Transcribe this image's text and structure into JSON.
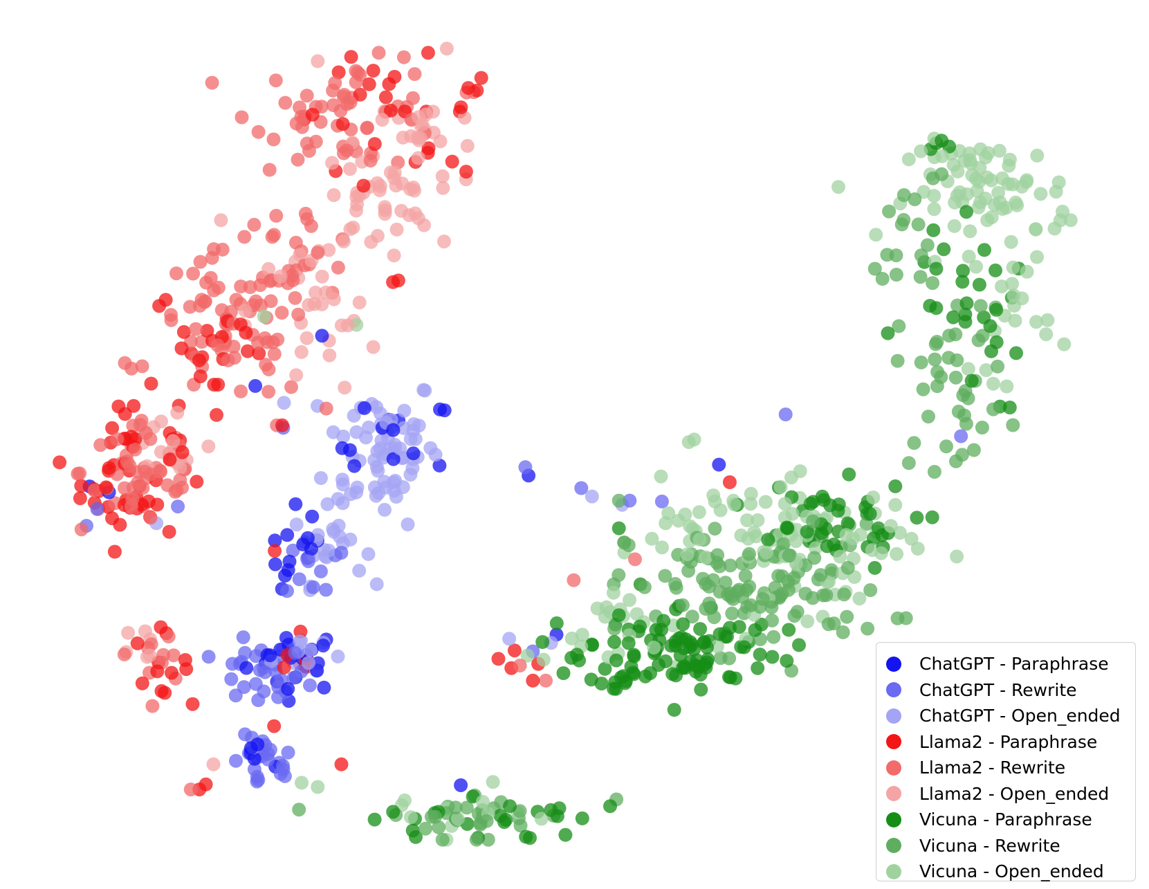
{
  "chart_data": {
    "type": "scatter",
    "title": "",
    "xlabel": "",
    "ylabel": "",
    "grid": false,
    "axes_visible": false,
    "legend_position": "bottom-right",
    "xlim": [
      0,
      100
    ],
    "ylim": [
      0,
      100
    ],
    "point_alpha": 0.75,
    "series": [
      {
        "name": "ChatGPT - Paraphrase",
        "color": "#1414f0",
        "clusters": [
          {
            "cx": 24.0,
            "cy": 24.5,
            "sx": 3.0,
            "sy": 2.5,
            "n": 22
          },
          {
            "cx": 24.5,
            "cy": 37.0,
            "sx": 2.0,
            "sy": 4.0,
            "n": 14
          },
          {
            "cx": 33.5,
            "cy": 50.0,
            "sx": 3.5,
            "sy": 4.0,
            "n": 12
          },
          {
            "cx": 21.0,
            "cy": 14.0,
            "sx": 2.0,
            "sy": 1.5,
            "n": 5
          }
        ],
        "points": [
          [
            4.8,
            45.2
          ],
          [
            6.6,
            44.5
          ],
          [
            20.2,
            57.2
          ],
          [
            32.0,
            52.2
          ],
          [
            45.6,
            46.5
          ],
          [
            63.3,
            47.8
          ],
          [
            48.2,
            27.5
          ],
          [
            26.4,
            63.2
          ],
          [
            39.3,
            9.5
          ]
        ]
      },
      {
        "name": "ChatGPT - Rewrite",
        "color": "#6a6af2",
        "clusters": [
          {
            "cx": 20.5,
            "cy": 22.5,
            "sx": 3.0,
            "sy": 2.5,
            "n": 28
          },
          {
            "cx": 21.0,
            "cy": 12.0,
            "sx": 2.0,
            "sy": 2.2,
            "n": 22
          },
          {
            "cx": 26.0,
            "cy": 35.5,
            "sx": 2.0,
            "sy": 2.5,
            "n": 10
          }
        ],
        "points": [
          [
            5.5,
            42.5
          ],
          [
            13.0,
            42.8
          ],
          [
            4.5,
            40.5
          ],
          [
            22.8,
            52.2
          ],
          [
            50.5,
            45.0
          ],
          [
            55.0,
            43.5
          ],
          [
            58.0,
            43.4
          ],
          [
            45.3,
            47.5
          ],
          [
            69.5,
            53.8
          ],
          [
            46.0,
            25.5
          ],
          [
            85.8,
            51.2
          ]
        ]
      },
      {
        "name": "ChatGPT - Open_ended",
        "color": "#a4a4f4",
        "clusters": [
          {
            "cx": 32.0,
            "cy": 50.0,
            "sx": 3.5,
            "sy": 6.0,
            "n": 70
          },
          {
            "cx": 27.0,
            "cy": 38.0,
            "sx": 2.2,
            "sy": 3.0,
            "n": 22
          },
          {
            "cx": 24.5,
            "cy": 25.5,
            "sx": 2.5,
            "sy": 2.0,
            "n": 12
          }
        ],
        "points": [
          [
            51.5,
            44.0
          ],
          [
            54.3,
            43.0
          ],
          [
            47.7,
            26.5
          ],
          [
            11.0,
            40.8
          ],
          [
            20.0,
            14.0
          ],
          [
            43.8,
            27.0
          ]
        ]
      },
      {
        "name": "Llama2 - Paraphrase",
        "color": "#f31616",
        "clusters": [
          {
            "cx": 8.5,
            "cy": 47.0,
            "sx": 3.0,
            "sy": 6.0,
            "n": 45
          },
          {
            "cx": 16.5,
            "cy": 62.0,
            "sx": 4.0,
            "sy": 5.0,
            "n": 22
          },
          {
            "cx": 32.0,
            "cy": 90.0,
            "sx": 6.0,
            "sy": 4.5,
            "n": 22
          },
          {
            "cx": 11.0,
            "cy": 24.0,
            "sx": 2.0,
            "sy": 2.5,
            "n": 12
          },
          {
            "cx": 24.0,
            "cy": 22.0,
            "sx": 2.0,
            "sy": 4.0,
            "n": 8
          }
        ],
        "points": [
          [
            15.0,
            9.0
          ],
          [
            15.6,
            9.6
          ],
          [
            44.0,
            23.5
          ],
          [
            42.8,
            24.6
          ],
          [
            46.0,
            22.0
          ],
          [
            46.5,
            24.0
          ],
          [
            44.3,
            25.6
          ],
          [
            28.2,
            12.0
          ],
          [
            22.0,
            37.5
          ],
          [
            22.7,
            52.5
          ],
          [
            33.0,
            69.6
          ],
          [
            40.8,
            92.5
          ],
          [
            40.0,
            92.8
          ],
          [
            38.5,
            84.0
          ],
          [
            36.3,
            85.6
          ],
          [
            39.8,
            82.8
          ],
          [
            64.3,
            45.7
          ],
          [
            33.5,
            69.8
          ],
          [
            41.2,
            94.0
          ]
        ]
      },
      {
        "name": "Llama2 - Rewrite",
        "color": "#f26a6a",
        "clusters": [
          {
            "cx": 10.0,
            "cy": 47.0,
            "sx": 4.0,
            "sy": 5.0,
            "n": 50
          },
          {
            "cx": 18.0,
            "cy": 64.0,
            "sx": 5.0,
            "sy": 6.0,
            "n": 70
          },
          {
            "cx": 29.0,
            "cy": 90.0,
            "sx": 6.0,
            "sy": 4.5,
            "n": 55
          },
          {
            "cx": 24.0,
            "cy": 73.0,
            "sx": 4.0,
            "sy": 4.0,
            "n": 20
          },
          {
            "cx": 11.5,
            "cy": 25.0,
            "sx": 2.0,
            "sy": 2.0,
            "n": 10
          }
        ],
        "points": [
          [
            22.2,
            52.5
          ],
          [
            26.8,
            54.5
          ],
          [
            14.2,
            9.0
          ],
          [
            44.8,
            23.8
          ],
          [
            47.2,
            22.0
          ],
          [
            55.5,
            36.5
          ],
          [
            49.8,
            34.0
          ],
          [
            40.5,
            92.3
          ]
        ]
      },
      {
        "name": "Llama2 - Open_ended",
        "color": "#f4a4a4",
        "clusters": [
          {
            "cx": 31.5,
            "cy": 79.5,
            "sx": 3.5,
            "sy": 4.0,
            "n": 40
          },
          {
            "cx": 25.5,
            "cy": 66.0,
            "sx": 4.0,
            "sy": 6.0,
            "n": 28
          },
          {
            "cx": 36.0,
            "cy": 87.0,
            "sx": 3.0,
            "sy": 3.5,
            "n": 20
          },
          {
            "cx": 12.0,
            "cy": 50.0,
            "sx": 3.0,
            "sy": 4.0,
            "n": 15
          },
          {
            "cx": 10.5,
            "cy": 26.5,
            "sx": 1.8,
            "sy": 1.5,
            "n": 6
          }
        ],
        "points": [
          [
            27.5,
            80.0
          ],
          [
            26.0,
            96.0
          ],
          [
            17.0,
            77.0
          ],
          [
            38.0,
            97.5
          ],
          [
            32.0,
            89.0
          ],
          [
            16.3,
            12.0
          ],
          [
            28.5,
            57.0
          ],
          [
            24.0,
            58.5
          ]
        ]
      },
      {
        "name": "Vicuna - Paraphrase",
        "color": "#168e16",
        "clusters": [
          {
            "cx": 60.0,
            "cy": 26.0,
            "sx": 6.0,
            "sy": 3.5,
            "n": 90
          },
          {
            "cx": 72.5,
            "cy": 40.5,
            "sx": 6.0,
            "sy": 3.5,
            "n": 40
          },
          {
            "cx": 87.0,
            "cy": 65.0,
            "sx": 3.0,
            "sy": 7.5,
            "n": 22
          },
          {
            "cx": 41.5,
            "cy": 5.5,
            "sx": 7.0,
            "sy": 2.0,
            "n": 24
          },
          {
            "cx": 52.5,
            "cy": 24.0,
            "sx": 2.0,
            "sy": 2.5,
            "n": 10
          }
        ],
        "points": [
          [
            83.5,
            86.2
          ],
          [
            84.0,
            86.5
          ],
          [
            84.7,
            85.8
          ],
          [
            83.0,
            85.5
          ],
          [
            86.3,
            78.0
          ],
          [
            83.5,
            71.2
          ],
          [
            82.4,
            72.0
          ],
          [
            89.0,
            71.0
          ],
          [
            79.0,
            63.5
          ],
          [
            83.5,
            66.5
          ],
          [
            56.0,
            33.5
          ],
          [
            65.0,
            43.0
          ],
          [
            54.0,
            40.2
          ]
        ]
      },
      {
        "name": "Vicuna - Rewrite",
        "color": "#5fad5f",
        "clusters": [
          {
            "cx": 67.0,
            "cy": 33.0,
            "sx": 8.0,
            "sy": 5.0,
            "n": 110
          },
          {
            "cx": 85.0,
            "cy": 58.0,
            "sx": 3.5,
            "sy": 7.0,
            "n": 40
          },
          {
            "cx": 40.0,
            "cy": 6.0,
            "sx": 7.0,
            "sy": 2.0,
            "n": 28
          },
          {
            "cx": 81.5,
            "cy": 73.0,
            "sx": 2.0,
            "sy": 3.0,
            "n": 8
          }
        ],
        "points": [
          [
            80.5,
            80.0
          ],
          [
            80.3,
            76.5
          ],
          [
            81.5,
            79.5
          ],
          [
            83.2,
            82.0
          ],
          [
            84.0,
            82.5
          ],
          [
            77.8,
            71.2
          ],
          [
            79.8,
            70.5
          ],
          [
            78.5,
            70.0
          ],
          [
            54.5,
            38.5
          ],
          [
            54.0,
            43.5
          ]
        ]
      },
      {
        "name": "Vicuna - Open_ended",
        "color": "#a0d2a0",
        "clusters": [
          {
            "cx": 88.5,
            "cy": 80.5,
            "sx": 5.0,
            "sy": 4.0,
            "n": 70
          },
          {
            "cx": 90.5,
            "cy": 67.0,
            "sx": 2.5,
            "sy": 6.0,
            "n": 20
          },
          {
            "cx": 72.0,
            "cy": 38.0,
            "sx": 6.5,
            "sy": 5.0,
            "n": 70
          },
          {
            "cx": 62.0,
            "cy": 40.5,
            "sx": 5.0,
            "sy": 3.5,
            "n": 25
          },
          {
            "cx": 55.0,
            "cy": 28.0,
            "sx": 4.0,
            "sy": 3.5,
            "n": 20
          },
          {
            "cx": 38.0,
            "cy": 6.0,
            "sx": 5.0,
            "sy": 2.0,
            "n": 12
          }
        ],
        "points": [
          [
            94.5,
            76.0
          ],
          [
            96.0,
            77.0
          ],
          [
            29.6,
            64.5
          ],
          [
            21.0,
            65.5
          ],
          [
            60.5,
            50.5
          ],
          [
            61.0,
            50.8
          ],
          [
            53.5,
            32.5
          ],
          [
            58.6,
            42.0
          ],
          [
            26.0,
            9.3
          ],
          [
            24.5,
            9.8
          ],
          [
            47.0,
            24.5
          ],
          [
            45.5,
            25.0
          ]
        ]
      }
    ]
  }
}
